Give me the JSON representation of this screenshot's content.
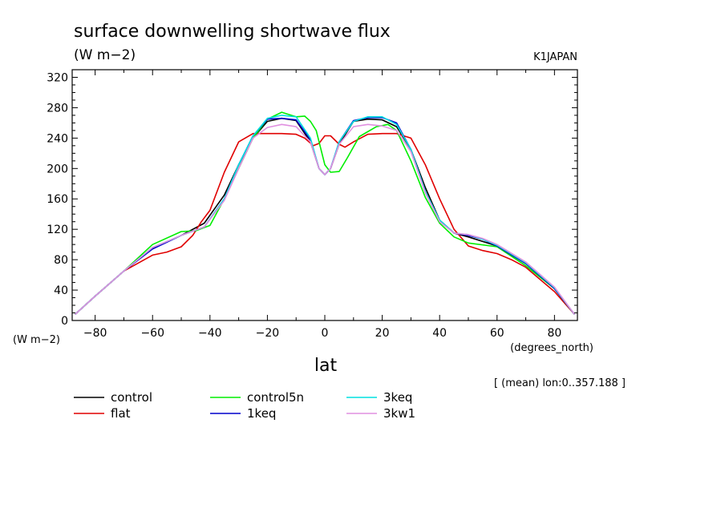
{
  "chart_data": {
    "type": "line",
    "title": "surface downwelling shortwave flux",
    "subtitle": "(W m−2)",
    "model": "K1JAPAN",
    "xlabel": "lat",
    "xunits": "(degrees_north)",
    "yunits": "(W m−2)",
    "note": "[ (mean) lon:0..357.188 ]",
    "xlim": [
      -88,
      88
    ],
    "ylim": [
      0,
      330
    ],
    "xticks": [
      -80,
      -60,
      -40,
      -20,
      0,
      20,
      40,
      60,
      80
    ],
    "yticks": [
      0,
      40,
      80,
      120,
      160,
      200,
      240,
      280,
      320
    ],
    "grid": false,
    "legend_position": "bottom",
    "series": [
      {
        "name": "control",
        "color": "#000000",
        "x": [
          -87,
          -80,
          -70,
          -60,
          -50,
          -42,
          -35,
          -30,
          -25,
          -20,
          -15,
          -10,
          -5,
          -2,
          0,
          2,
          5,
          10,
          15,
          20,
          25,
          30,
          35,
          40,
          45,
          50,
          60,
          70,
          80,
          87
        ],
        "y": [
          8,
          32,
          65,
          95,
          112,
          128,
          165,
          205,
          240,
          262,
          266,
          263,
          235,
          200,
          192,
          200,
          232,
          262,
          265,
          264,
          255,
          225,
          175,
          132,
          115,
          110,
          98,
          75,
          42,
          8
        ]
      },
      {
        "name": "flat",
        "color": "#e00000",
        "x": [
          -87,
          -80,
          -70,
          -60,
          -55,
          -50,
          -46,
          -43,
          -40,
          -35,
          -30,
          -25,
          -20,
          -15,
          -10,
          -7,
          -4,
          -2,
          0,
          2,
          5,
          7,
          10,
          15,
          20,
          25,
          30,
          35,
          40,
          45,
          50,
          55,
          60,
          65,
          70,
          80,
          87
        ],
        "y": [
          8,
          32,
          65,
          86,
          90,
          97,
          112,
          130,
          145,
          195,
          235,
          246,
          246,
          246,
          245,
          240,
          230,
          233,
          243,
          243,
          232,
          228,
          235,
          245,
          246,
          246,
          240,
          205,
          160,
          120,
          98,
          92,
          88,
          80,
          70,
          38,
          8
        ]
      },
      {
        "name": "control5n",
        "color": "#00ee00",
        "x": [
          -87,
          -80,
          -70,
          -60,
          -50,
          -45,
          -40,
          -35,
          -30,
          -25,
          -20,
          -15,
          -10,
          -7,
          -5,
          -3,
          0,
          2,
          5,
          8,
          12,
          18,
          22,
          25,
          30,
          35,
          40,
          45,
          50,
          60,
          70,
          80,
          87
        ],
        "y": [
          8,
          32,
          65,
          100,
          117,
          118,
          125,
          160,
          200,
          240,
          265,
          274,
          268,
          269,
          262,
          250,
          205,
          195,
          196,
          215,
          242,
          255,
          258,
          250,
          210,
          162,
          128,
          110,
          102,
          97,
          72,
          42,
          8
        ]
      },
      {
        "name": "1keq",
        "color": "#0000cc",
        "x": [
          -87,
          -80,
          -70,
          -60,
          -50,
          -42,
          -35,
          -30,
          -25,
          -20,
          -15,
          -10,
          -5,
          -2,
          0,
          2,
          5,
          10,
          15,
          20,
          25,
          30,
          35,
          40,
          45,
          50,
          55,
          60,
          70,
          80,
          87
        ],
        "y": [
          8,
          32,
          65,
          94,
          112,
          123,
          160,
          205,
          243,
          265,
          266,
          264,
          238,
          200,
          192,
          200,
          235,
          263,
          267,
          267,
          260,
          225,
          170,
          132,
          115,
          112,
          107,
          98,
          75,
          42,
          8
        ]
      },
      {
        "name": "3keq",
        "color": "#00e0e0",
        "x": [
          -87,
          -80,
          -70,
          -60,
          -50,
          -42,
          -35,
          -30,
          -25,
          -20,
          -15,
          -10,
          -5,
          -2,
          0,
          2,
          5,
          10,
          15,
          20,
          25,
          30,
          35,
          40,
          45,
          50,
          55,
          60,
          70,
          80,
          87
        ],
        "y": [
          8,
          32,
          65,
          96,
          112,
          123,
          160,
          205,
          243,
          266,
          270,
          268,
          240,
          200,
          192,
          200,
          235,
          262,
          268,
          268,
          258,
          225,
          170,
          132,
          115,
          113,
          107,
          99,
          76,
          43,
          8
        ]
      },
      {
        "name": "3kw1",
        "color": "#e090e0",
        "x": [
          -87,
          -80,
          -70,
          -60,
          -50,
          -42,
          -35,
          -30,
          -25,
          -20,
          -15,
          -10,
          -5,
          -2,
          0,
          2,
          5,
          10,
          15,
          20,
          25,
          30,
          35,
          40,
          45,
          50,
          55,
          60,
          70,
          80,
          87
        ],
        "y": [
          8,
          32,
          65,
          96,
          112,
          123,
          158,
          200,
          240,
          254,
          258,
          255,
          235,
          200,
          192,
          200,
          232,
          255,
          258,
          256,
          250,
          222,
          168,
          130,
          115,
          113,
          108,
          100,
          77,
          44,
          8
        ]
      }
    ]
  }
}
